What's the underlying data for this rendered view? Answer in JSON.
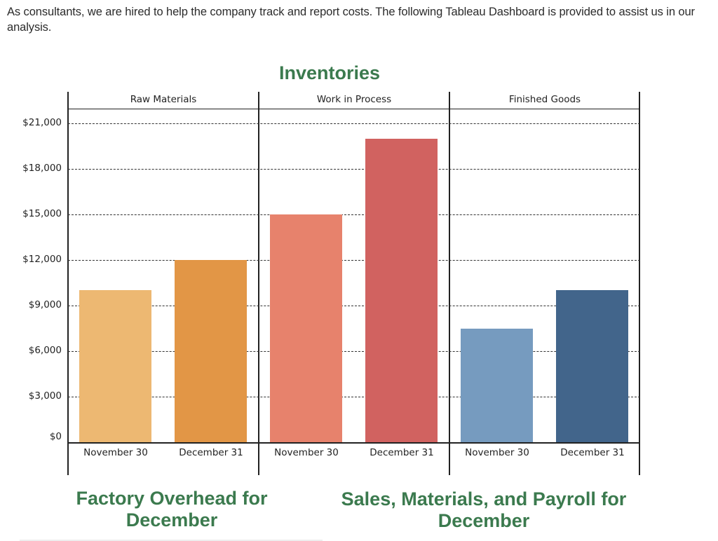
{
  "intro_text": "As consultants, we are hired to help the company track and report costs. The following Tableau Dashboard is provided to assist us in our analysis.",
  "titles": {
    "inventories": "Inventories",
    "factory_overhead": "Factory Overhead for December",
    "sales_materials_payroll": "Sales, Materials, and Payroll for December"
  },
  "colors": {
    "title_green": "#3b7a4e",
    "raw_nov": "#edb872",
    "raw_dec": "#e29646",
    "wip_nov": "#e7826c",
    "wip_dec": "#d16260",
    "fg_nov": "#769bbf",
    "fg_dec": "#42658b"
  },
  "chart_data": {
    "type": "bar",
    "title": "Inventories",
    "xlabel": "",
    "ylabel": "",
    "ylim": [
      0,
      21000
    ],
    "yticks": [
      "$0",
      "$3,000",
      "$6,000",
      "$9,000",
      "$12,000",
      "$15,000",
      "$18,000",
      "$21,000"
    ],
    "grid": true,
    "legend": "none",
    "panels": [
      {
        "name": "Raw Materials",
        "categories": [
          "November 30",
          "December 31"
        ],
        "values": [
          10000,
          12000
        ]
      },
      {
        "name": "Work in Process",
        "categories": [
          "November 30",
          "December 31"
        ],
        "values": [
          15000,
          20000
        ]
      },
      {
        "name": "Finished Goods",
        "categories": [
          "November 30",
          "December 31"
        ],
        "values": [
          7500,
          10000
        ]
      }
    ]
  }
}
